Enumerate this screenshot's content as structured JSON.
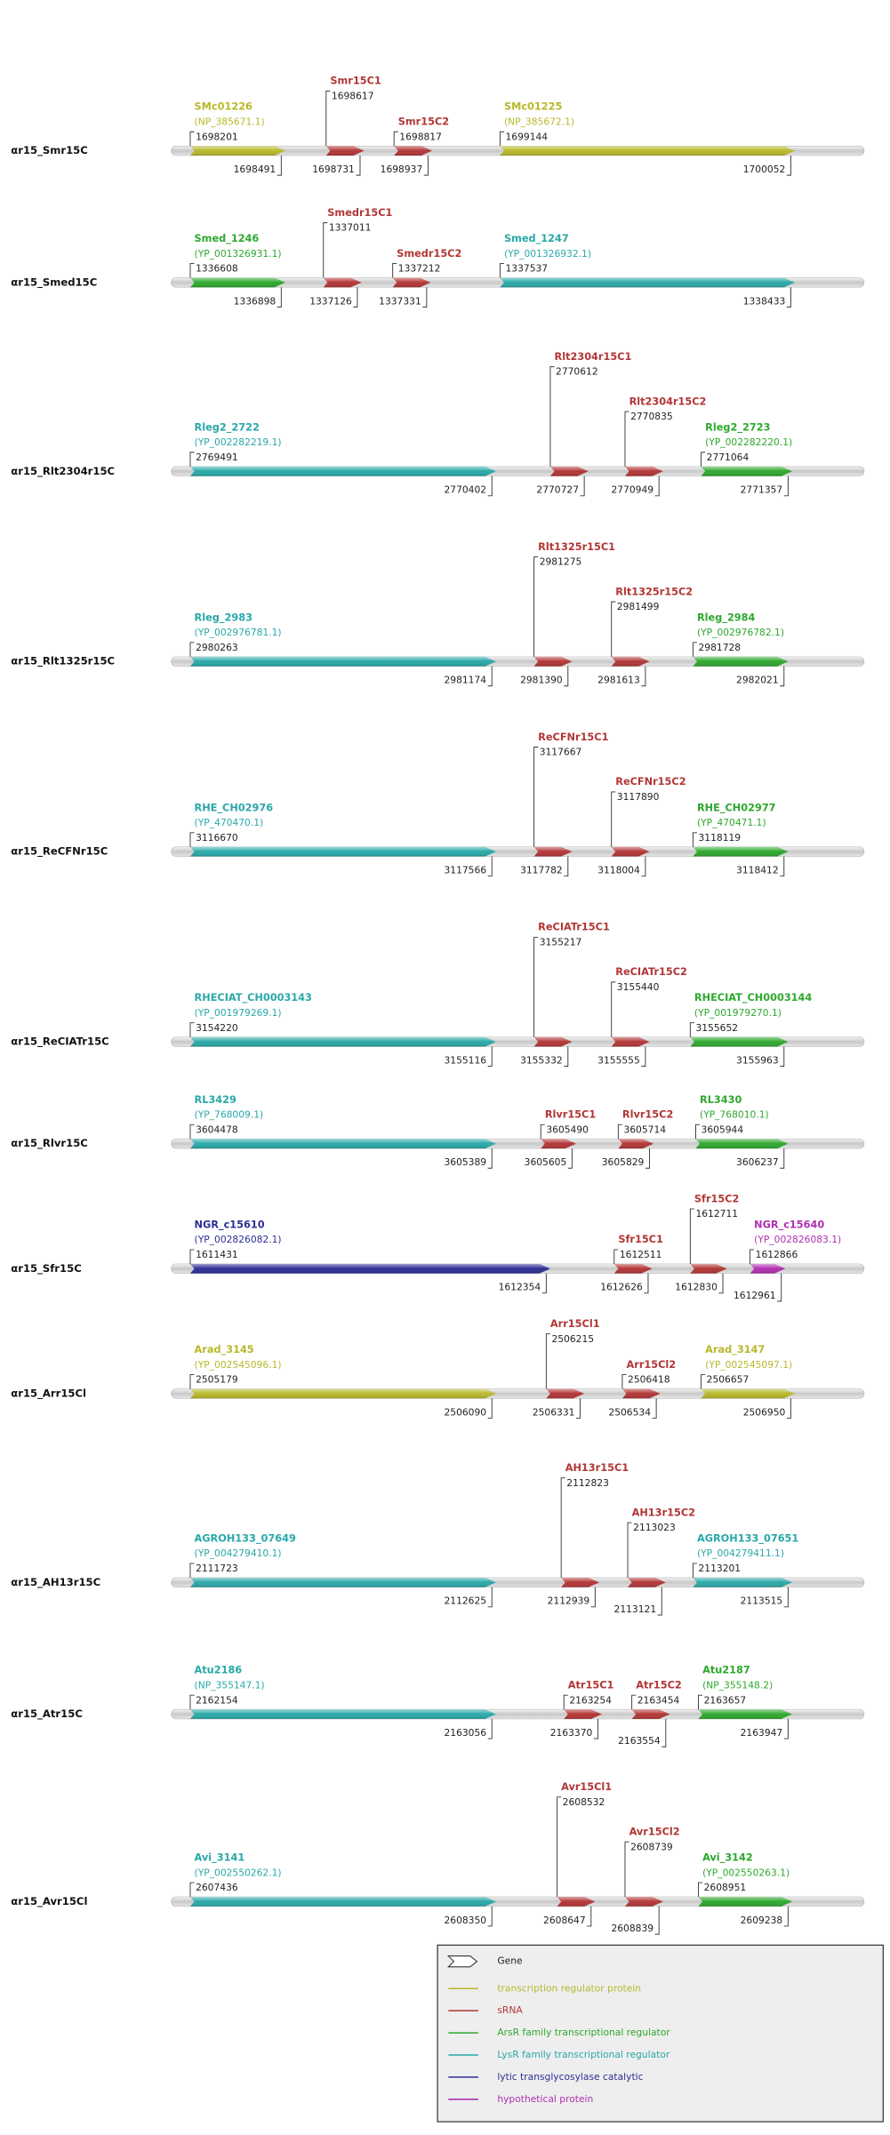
{
  "tracks": [
    {
      "label": "αr15_Smr15C",
      "features": [
        {
          "name": "SMc01226",
          "accession": "(NP_385671.1)",
          "start": 1698201,
          "end": 1698491,
          "color": "#b8b82c"
        },
        {
          "name": "Smr15C1",
          "start": 1698617,
          "end": 1698731,
          "color": "#b23636"
        },
        {
          "name": "Smr15C2",
          "start": 1698817,
          "end": 1698937,
          "color": "#b23636"
        },
        {
          "name": "SMc01225",
          "accession": "(NP_385672.1)",
          "start": 1699144,
          "end": 1700052,
          "color": "#b8b82c"
        }
      ]
    },
    {
      "label": "αr15_Smed15C",
      "features": [
        {
          "name": "Smed_1246",
          "accession": "(YP_001326931.1)",
          "start": 1336608,
          "end": 1336898,
          "color": "#2ea82e"
        },
        {
          "name": "Smedr15C1",
          "start": 1337011,
          "end": 1337126,
          "color": "#b23636"
        },
        {
          "name": "Smedr15C2",
          "start": 1337212,
          "end": 1337331,
          "color": "#b23636"
        },
        {
          "name": "Smed_1247",
          "accession": "(YP_001326932.1)",
          "start": 1337537,
          "end": 1338433,
          "color": "#2aa8a8"
        }
      ]
    },
    {
      "label": "αr15_Rlt2304r15C",
      "features": [
        {
          "name": "Rleg2_2722",
          "accession": "(YP_002282219.1)",
          "start": 2769491,
          "end": 2770402,
          "color": "#2aa8a8"
        },
        {
          "name": "Rlt2304r15C1",
          "start": 2770612,
          "end": 2770727,
          "color": "#b23636"
        },
        {
          "name": "Rlt2304r15C2",
          "start": 2770835,
          "end": 2770949,
          "color": "#b23636"
        },
        {
          "name": "Rleg2_2723",
          "accession": "(YP_002282220.1)",
          "start": 2771064,
          "end": 2771357,
          "color": "#2ea82e"
        }
      ]
    },
    {
      "label": "αr15_Rlt1325r15C",
      "features": [
        {
          "name": "Rleg_2983",
          "accession": "(YP_002976781.1)",
          "start": 2980263,
          "end": 2981174,
          "color": "#2aa8a8"
        },
        {
          "name": "Rlt1325r15C1",
          "start": 2981275,
          "end": 2981390,
          "color": "#b23636"
        },
        {
          "name": "Rlt1325r15C2",
          "start": 2981499,
          "end": 2981613,
          "color": "#b23636"
        },
        {
          "name": "Rleg_2984",
          "accession": "(YP_002976782.1)",
          "start": 2981728,
          "end": 2982021,
          "color": "#2ea82e"
        }
      ]
    },
    {
      "label": "αr15_ReCFNr15C",
      "features": [
        {
          "name": "RHE_CH02976",
          "accession": "(YP_470470.1)",
          "start": 3116670,
          "end": 3117566,
          "color": "#2aa8a8"
        },
        {
          "name": "ReCFNr15C1",
          "start": 3117667,
          "end": 3117782,
          "color": "#b23636"
        },
        {
          "name": "ReCFNr15C2",
          "start": 3117890,
          "end": 3118004,
          "color": "#b23636"
        },
        {
          "name": "RHE_CH02977",
          "accession": "(YP_470471.1)",
          "start": 3118119,
          "end": 3118412,
          "color": "#2ea82e"
        }
      ]
    },
    {
      "label": "αr15_ReCIATr15C",
      "features": [
        {
          "name": "RHECIAT_CH0003143",
          "accession": "(YP_001979269.1)",
          "start": 3154220,
          "end": 3155116,
          "color": "#2aa8a8"
        },
        {
          "name": "ReCIATr15C1",
          "start": 3155217,
          "end": 3155332,
          "color": "#b23636"
        },
        {
          "name": "ReCIATr15C2",
          "start": 3155440,
          "end": 3155555,
          "color": "#b23636"
        },
        {
          "name": "RHECIAT_CH0003144",
          "accession": "(YP_001979270.1)",
          "start": 3155652,
          "end": 3155963,
          "color": "#2ea82e"
        }
      ]
    },
    {
      "label": "αr15_Rlvr15C",
      "features": [
        {
          "name": "RL3429",
          "accession": "(YP_768009.1)",
          "start": 3604478,
          "end": 3605389,
          "color": "#2aa8a8"
        },
        {
          "name": "Rlvr15C1",
          "start": 3605490,
          "end": 3605605,
          "color": "#b23636"
        },
        {
          "name": "Rlvr15C2",
          "start": 3605714,
          "end": 3605829,
          "color": "#b23636"
        },
        {
          "name": "RL3430",
          "accession": "(YP_768010.1)",
          "start": 3605944,
          "end": 3606237,
          "color": "#2ea82e"
        }
      ]
    },
    {
      "label": "αr15_Sfr15C",
      "features": [
        {
          "name": "NGR_c15610",
          "accession": "(YP_002826082.1)",
          "start": 1611431,
          "end": 1612354,
          "color": "#2e2e96"
        },
        {
          "name": "Sfr15C1",
          "start": 1612511,
          "end": 1612626,
          "color": "#b23636"
        },
        {
          "name": "Sfr15C2",
          "start": 1612711,
          "end": 1612830,
          "color": "#b23636"
        },
        {
          "name": "NGR_c15640",
          "accession": "(YP_002826083.1)",
          "start": 1612866,
          "end": 1612961,
          "color": "#b030b0"
        }
      ]
    },
    {
      "label": "αr15_Arr15Cl",
      "features": [
        {
          "name": "Arad_3145",
          "accession": "(YP_002545096.1)",
          "start": 2505179,
          "end": 2506090,
          "color": "#b8b82c"
        },
        {
          "name": "Arr15Cl1",
          "start": 2506215,
          "end": 2506331,
          "color": "#b23636"
        },
        {
          "name": "Arr15Cl2",
          "start": 2506418,
          "end": 2506534,
          "color": "#b23636"
        },
        {
          "name": "Arad_3147",
          "accession": "(YP_002545097.1)",
          "start": 2506657,
          "end": 2506950,
          "color": "#b8b82c"
        }
      ]
    },
    {
      "label": "αr15_AH13r15C",
      "features": [
        {
          "name": "AGROH133_07649",
          "accession": "(YP_004279410.1)",
          "start": 2111723,
          "end": 2112625,
          "color": "#2aa8a8"
        },
        {
          "name": "AH13r15C1",
          "start": 2112823,
          "end": 2112939,
          "color": "#b23636"
        },
        {
          "name": "AH13r15C2",
          "start": 2113023,
          "end": 2113121,
          "color": "#b23636"
        },
        {
          "name": "AGROH133_07651",
          "accession": "(YP_004279411.1)",
          "start": 2113201,
          "end": 2113515,
          "color": "#2aa8a8"
        }
      ]
    },
    {
      "label": "αr15_Atr15C",
      "features": [
        {
          "name": "Atu2186",
          "accession": "(NP_355147.1)",
          "start": 2162154,
          "end": 2163056,
          "color": "#2aa8a8"
        },
        {
          "name": "Atr15C1",
          "start": 2163254,
          "end": 2163370,
          "color": "#b23636"
        },
        {
          "name": "Atr15C2",
          "start": 2163454,
          "end": 2163554,
          "color": "#b23636"
        },
        {
          "name": "Atu2187",
          "accession": "(NP_355148.2)",
          "start": 2163657,
          "end": 2163947,
          "color": "#2ea82e"
        }
      ]
    },
    {
      "label": "αr15_Avr15Cl",
      "features": [
        {
          "name": "Avi_3141",
          "accession": "(YP_002550262.1)",
          "start": 2607436,
          "end": 2608350,
          "color": "#2aa8a8"
        },
        {
          "name": "Avr15Cl1",
          "start": 2608532,
          "end": 2608647,
          "color": "#b23636"
        },
        {
          "name": "Avr15Cl2",
          "start": 2608739,
          "end": 2608839,
          "color": "#b23636"
        },
        {
          "name": "Avi_3142",
          "accession": "(YP_002550263.1)",
          "start": 2608951,
          "end": 2609238,
          "color": "#2ea82e"
        }
      ]
    }
  ],
  "legend": {
    "title": "Gene",
    "items": [
      {
        "label": "transcription regulator protein",
        "color": "#b8b82c"
      },
      {
        "label": "sRNA",
        "color": "#b23636"
      },
      {
        "label": "ArsR family transcriptional regulator",
        "color": "#2ea82e"
      },
      {
        "label": "LysR family transcriptional regulator",
        "color": "#2aa8a8"
      },
      {
        "label": "lytic transglycosylase catalytic",
        "color": "#2e2e96"
      },
      {
        "label": "hypothetical protein",
        "color": "#b030b0"
      }
    ]
  }
}
